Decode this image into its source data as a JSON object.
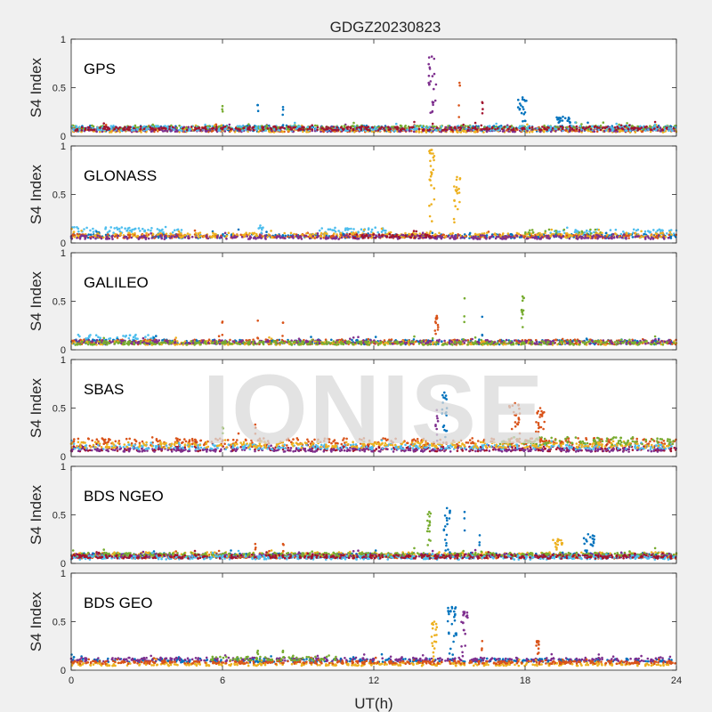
{
  "figure": {
    "title": "GDGZ20230823",
    "xlabel": "UT(h)",
    "watermark": "IONISE"
  },
  "series_colors": [
    "#0072bd",
    "#d95319",
    "#edb120",
    "#7e2f8e",
    "#77ac30",
    "#4dbeee",
    "#a2142f"
  ],
  "chart_data": [
    {
      "type": "scatter",
      "panel": "GPS",
      "ylabel": "S4 Index",
      "xlim": [
        0,
        24
      ],
      "ylim": [
        0,
        1
      ],
      "xticks": [
        0,
        6,
        12,
        18,
        24
      ],
      "yticks": [
        0,
        0.5,
        1
      ],
      "baseline": [
        {
          "color": 0,
          "level": 0.08,
          "from": 0,
          "to": 24,
          "jitter": 0.03
        },
        {
          "color": 1,
          "level": 0.07,
          "from": 0,
          "to": 24,
          "jitter": 0.025
        },
        {
          "color": 2,
          "level": 0.06,
          "from": 0,
          "to": 24,
          "jitter": 0.02
        },
        {
          "color": 3,
          "level": 0.07,
          "from": 0,
          "to": 24,
          "jitter": 0.025
        },
        {
          "color": 4,
          "level": 0.09,
          "from": 0,
          "to": 24,
          "jitter": 0.02
        },
        {
          "color": 5,
          "level": 0.08,
          "from": 0,
          "to": 24,
          "jitter": 0.025
        },
        {
          "color": 6,
          "level": 0.08,
          "from": 0,
          "to": 24,
          "jitter": 0.02
        }
      ],
      "events": [
        {
          "color": 3,
          "x": 14.3,
          "width": 0.35,
          "peak": 0.82,
          "count": 22
        },
        {
          "color": 1,
          "x": 15.4,
          "width": 0.06,
          "peak": 0.55,
          "count": 3
        },
        {
          "color": 6,
          "x": 16.3,
          "width": 0.06,
          "peak": 0.35,
          "count": 3
        },
        {
          "color": 0,
          "x": 17.9,
          "width": 0.35,
          "peak": 0.4,
          "count": 18
        },
        {
          "color": 4,
          "x": 6.0,
          "width": 0.04,
          "peak": 0.31,
          "count": 2
        },
        {
          "color": 0,
          "x": 7.4,
          "width": 0.04,
          "peak": 0.32,
          "count": 2
        },
        {
          "color": 0,
          "x": 8.4,
          "width": 0.04,
          "peak": 0.3,
          "count": 3
        },
        {
          "color": 0,
          "x": 19.5,
          "width": 0.6,
          "peak": 0.2,
          "count": 18
        }
      ]
    },
    {
      "type": "scatter",
      "panel": "GLONASS",
      "ylabel": "S4 Index",
      "xlim": [
        0,
        24
      ],
      "ylim": [
        0,
        1
      ],
      "xticks": [
        0,
        6,
        12,
        18,
        24
      ],
      "yticks": [
        0,
        0.5,
        1
      ],
      "baseline": [
        {
          "color": 5,
          "level": 0.13,
          "from": 0,
          "to": 4.4,
          "jitter": 0.035
        },
        {
          "color": 5,
          "level": 0.13,
          "from": 9.8,
          "to": 12.5,
          "jitter": 0.03
        },
        {
          "color": 5,
          "level": 0.11,
          "from": 19.0,
          "to": 24,
          "jitter": 0.03
        },
        {
          "color": 4,
          "level": 0.1,
          "from": 18.0,
          "to": 21.0,
          "jitter": 0.04
        },
        {
          "color": 0,
          "level": 0.07,
          "from": 0,
          "to": 24,
          "jitter": 0.02
        },
        {
          "color": 1,
          "level": 0.07,
          "from": 0,
          "to": 24,
          "jitter": 0.02
        },
        {
          "color": 2,
          "level": 0.08,
          "from": 0,
          "to": 24,
          "jitter": 0.025
        },
        {
          "color": 3,
          "level": 0.06,
          "from": 0,
          "to": 24,
          "jitter": 0.02
        },
        {
          "color": 6,
          "level": 0.07,
          "from": 11.0,
          "to": 14.5,
          "jitter": 0.02
        }
      ],
      "events": [
        {
          "color": 2,
          "x": 14.3,
          "width": 0.2,
          "peak": 0.96,
          "count": 26
        },
        {
          "color": 2,
          "x": 15.3,
          "width": 0.25,
          "peak": 0.68,
          "count": 18
        },
        {
          "color": 5,
          "x": 7.5,
          "width": 0.3,
          "peak": 0.18,
          "count": 6
        }
      ]
    },
    {
      "type": "scatter",
      "panel": "GALILEO",
      "ylabel": "S4 Index",
      "xlim": [
        0,
        24
      ],
      "ylim": [
        0,
        1
      ],
      "xticks": [
        0,
        6,
        12,
        18,
        24
      ],
      "yticks": [
        0,
        0.5,
        1
      ],
      "baseline": [
        {
          "color": 5,
          "level": 0.12,
          "from": 0,
          "to": 3.4,
          "jitter": 0.035
        },
        {
          "color": 0,
          "level": 0.08,
          "from": 0,
          "to": 24,
          "jitter": 0.025
        },
        {
          "color": 1,
          "level": 0.08,
          "from": 0,
          "to": 24,
          "jitter": 0.025
        },
        {
          "color": 2,
          "level": 0.07,
          "from": 0,
          "to": 24,
          "jitter": 0.02
        },
        {
          "color": 3,
          "level": 0.08,
          "from": 0,
          "to": 24,
          "jitter": 0.02
        },
        {
          "color": 4,
          "level": 0.07,
          "from": 0,
          "to": 24,
          "jitter": 0.02
        }
      ],
      "events": [
        {
          "color": 1,
          "x": 14.5,
          "width": 0.15,
          "peak": 0.35,
          "count": 12
        },
        {
          "color": 4,
          "x": 15.6,
          "width": 0.04,
          "peak": 0.53,
          "count": 2
        },
        {
          "color": 0,
          "x": 16.3,
          "width": 0.04,
          "peak": 0.34,
          "count": 2
        },
        {
          "color": 4,
          "x": 17.9,
          "width": 0.12,
          "peak": 0.55,
          "count": 12
        },
        {
          "color": 1,
          "x": 6.0,
          "width": 0.04,
          "peak": 0.29,
          "count": 2
        },
        {
          "color": 1,
          "x": 7.4,
          "width": 0.04,
          "peak": 0.3,
          "count": 2
        },
        {
          "color": 1,
          "x": 8.4,
          "width": 0.04,
          "peak": 0.28,
          "count": 2
        }
      ]
    },
    {
      "type": "scatter",
      "panel": "SBAS",
      "ylabel": "S4 Index",
      "xlim": [
        0,
        24
      ],
      "ylim": [
        0,
        1
      ],
      "xticks": [
        0,
        6,
        12,
        18,
        24
      ],
      "yticks": [
        0,
        0.5,
        1
      ],
      "baseline": [
        {
          "color": 1,
          "level": 0.15,
          "from": 0,
          "to": 24,
          "jitter": 0.04
        },
        {
          "color": 6,
          "level": 0.08,
          "from": 0,
          "to": 24,
          "jitter": 0.025
        },
        {
          "color": 3,
          "level": 0.07,
          "from": 0,
          "to": 24,
          "jitter": 0.02
        },
        {
          "color": 5,
          "level": 0.1,
          "from": 0,
          "to": 24,
          "jitter": 0.025
        },
        {
          "color": 2,
          "level": 0.12,
          "from": 0,
          "to": 24,
          "jitter": 0.03
        },
        {
          "color": 4,
          "level": 0.16,
          "from": 17.0,
          "to": 24,
          "jitter": 0.04
        }
      ],
      "events": [
        {
          "color": 0,
          "x": 14.8,
          "width": 0.2,
          "peak": 0.66,
          "count": 18
        },
        {
          "color": 3,
          "x": 14.5,
          "width": 0.1,
          "peak": 0.48,
          "count": 8
        },
        {
          "color": 1,
          "x": 17.6,
          "width": 0.45,
          "peak": 0.55,
          "count": 30
        },
        {
          "color": 1,
          "x": 18.6,
          "width": 0.35,
          "peak": 0.5,
          "count": 22
        },
        {
          "color": 4,
          "x": 6.0,
          "width": 0.04,
          "peak": 0.3,
          "count": 2
        },
        {
          "color": 1,
          "x": 7.3,
          "width": 0.04,
          "peak": 0.33,
          "count": 2
        }
      ]
    },
    {
      "type": "scatter",
      "panel": "BDS NGEO",
      "ylabel": "S4 Index",
      "xlim": [
        0,
        24
      ],
      "ylim": [
        0,
        1
      ],
      "xticks": [
        0,
        6,
        12,
        18,
        24
      ],
      "yticks": [
        0,
        0.5,
        1
      ],
      "baseline": [
        {
          "color": 0,
          "level": 0.08,
          "from": 0,
          "to": 24,
          "jitter": 0.025
        },
        {
          "color": 1,
          "level": 0.07,
          "from": 0,
          "to": 24,
          "jitter": 0.02
        },
        {
          "color": 2,
          "level": 0.09,
          "from": 0,
          "to": 24,
          "jitter": 0.025
        },
        {
          "color": 3,
          "level": 0.08,
          "from": 0,
          "to": 24,
          "jitter": 0.02
        },
        {
          "color": 4,
          "level": 0.09,
          "from": 0,
          "to": 24,
          "jitter": 0.02
        },
        {
          "color": 5,
          "level": 0.06,
          "from": 0,
          "to": 24,
          "jitter": 0.02
        },
        {
          "color": 6,
          "level": 0.07,
          "from": 0,
          "to": 24,
          "jitter": 0.02
        }
      ],
      "events": [
        {
          "color": 4,
          "x": 14.2,
          "width": 0.15,
          "peak": 0.53,
          "count": 14
        },
        {
          "color": 0,
          "x": 14.9,
          "width": 0.25,
          "peak": 0.57,
          "count": 18
        },
        {
          "color": 0,
          "x": 15.6,
          "width": 0.04,
          "peak": 0.53,
          "count": 2
        },
        {
          "color": 0,
          "x": 16.2,
          "width": 0.04,
          "peak": 0.29,
          "count": 2
        },
        {
          "color": 2,
          "x": 19.3,
          "width": 0.4,
          "peak": 0.25,
          "count": 14
        },
        {
          "color": 0,
          "x": 20.5,
          "width": 0.5,
          "peak": 0.3,
          "count": 16
        },
        {
          "color": 1,
          "x": 7.3,
          "width": 0.04,
          "peak": 0.2,
          "count": 2
        },
        {
          "color": 1,
          "x": 8.4,
          "width": 0.04,
          "peak": 0.2,
          "count": 2
        }
      ]
    },
    {
      "type": "scatter",
      "panel": "BDS GEO",
      "ylabel": "S4 Index",
      "xlim": [
        0,
        24
      ],
      "ylim": [
        0,
        1
      ],
      "xticks": [
        0,
        6,
        12,
        18,
        24
      ],
      "yticks": [
        0,
        0.5,
        1
      ],
      "baseline": [
        {
          "color": 0,
          "level": 0.1,
          "from": 0,
          "to": 24,
          "jitter": 0.02
        },
        {
          "color": 3,
          "level": 0.11,
          "from": 0,
          "to": 24,
          "jitter": 0.02
        },
        {
          "color": 2,
          "level": 0.06,
          "from": 0,
          "to": 24,
          "jitter": 0.015
        },
        {
          "color": 1,
          "level": 0.08,
          "from": 0,
          "to": 24,
          "jitter": 0.015
        },
        {
          "color": 4,
          "level": 0.12,
          "from": 5.5,
          "to": 10.5,
          "jitter": 0.02
        }
      ],
      "events": [
        {
          "color": 2,
          "x": 14.4,
          "width": 0.25,
          "peak": 0.5,
          "count": 18
        },
        {
          "color": 0,
          "x": 15.1,
          "width": 0.35,
          "peak": 0.65,
          "count": 26
        },
        {
          "color": 3,
          "x": 15.6,
          "width": 0.25,
          "peak": 0.6,
          "count": 18
        },
        {
          "color": 1,
          "x": 18.5,
          "width": 0.12,
          "peak": 0.3,
          "count": 10
        },
        {
          "color": 1,
          "x": 16.3,
          "width": 0.04,
          "peak": 0.3,
          "count": 2
        },
        {
          "color": 4,
          "x": 7.4,
          "width": 0.04,
          "peak": 0.2,
          "count": 2
        },
        {
          "color": 4,
          "x": 8.4,
          "width": 0.04,
          "peak": 0.2,
          "count": 2
        }
      ]
    }
  ]
}
